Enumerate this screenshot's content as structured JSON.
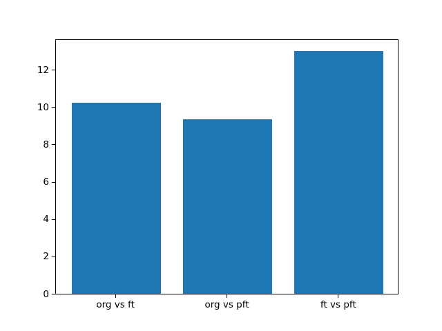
{
  "chart_data": {
    "type": "bar",
    "categories": [
      "org vs ft",
      "org vs pft",
      "ft vs pft"
    ],
    "values": [
      10.24,
      9.36,
      13.02
    ],
    "title": "",
    "xlabel": "",
    "ylabel": "",
    "ylim": [
      0,
      13.67
    ],
    "xlim": [
      -0.54,
      2.54
    ],
    "yticks": [
      0,
      2,
      4,
      6,
      8,
      10,
      12
    ],
    "bar_width": 0.8,
    "grid": false,
    "legend": false,
    "bar_color": "#1f77b4"
  },
  "colors": {
    "bar": "#1f77b4",
    "spine": "#000000",
    "background": "#ffffff",
    "tick_label": "#000000"
  }
}
